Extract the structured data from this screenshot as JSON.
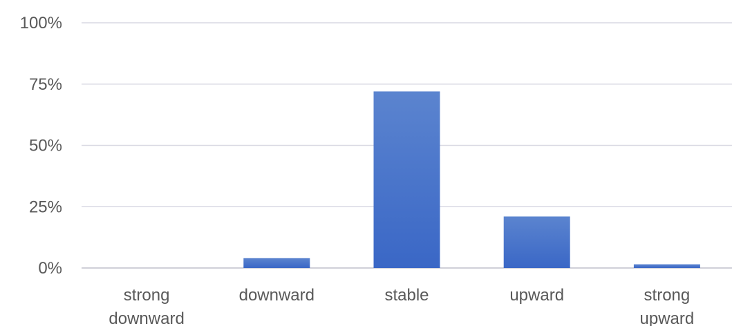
{
  "chart_data": {
    "type": "bar",
    "categories": [
      [
        "strong",
        "downward"
      ],
      [
        "downward"
      ],
      [
        "stable"
      ],
      [
        "upward"
      ],
      [
        "strong",
        "upward"
      ]
    ],
    "values": [
      0,
      4,
      72,
      21,
      1.5
    ],
    "ylim": [
      0,
      100
    ],
    "yticks": [
      0,
      25,
      50,
      75,
      100
    ],
    "ytick_labels": [
      "0%",
      "25%",
      "50%",
      "75%",
      "100%"
    ],
    "grid": true,
    "legend": "none",
    "title": "",
    "xlabel": "",
    "ylabel": "",
    "colors": {
      "bar_top": "#5b84cf",
      "bar_bottom": "#3a67c6"
    }
  }
}
